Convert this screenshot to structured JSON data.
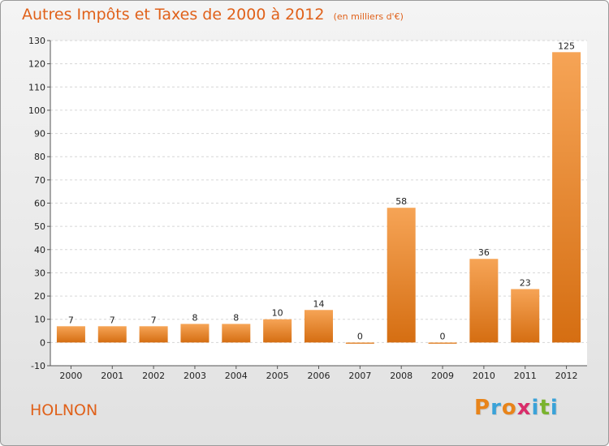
{
  "title": "Autres Impôts et Taxes de 2000 à 2012",
  "unit": "(en milliers d'€)",
  "commune": "HOLNON",
  "logo": {
    "text": "Proxiti",
    "letters": [
      "P",
      "r",
      "o",
      "x",
      "i",
      "t",
      "i"
    ],
    "colors": [
      "#e8841a",
      "#3aa2d8",
      "#e8841a",
      "#d92d6a",
      "#3aa2d8",
      "#7ab32e",
      "#3aa2d8"
    ]
  },
  "chart_data": {
    "type": "bar",
    "title": "Autres Impôts et Taxes de 2000 à 2012",
    "unit": "(en milliers d'€)",
    "categories": [
      "2000",
      "2001",
      "2002",
      "2003",
      "2004",
      "2005",
      "2006",
      "2007",
      "2008",
      "2009",
      "2010",
      "2011",
      "2012"
    ],
    "values": [
      7,
      7,
      7,
      8,
      8,
      10,
      14,
      0,
      58,
      0,
      36,
      23,
      125
    ],
    "ylim": [
      -10,
      130
    ],
    "yticks": [
      "-10",
      "0",
      "10",
      "20",
      "30",
      "40",
      "50",
      "60",
      "70",
      "80",
      "90",
      "100",
      "110",
      "120",
      "130"
    ],
    "grid": true,
    "legend": "none",
    "bar_colors": {
      "light": "#f6a456",
      "dark": "#d56e12"
    }
  }
}
